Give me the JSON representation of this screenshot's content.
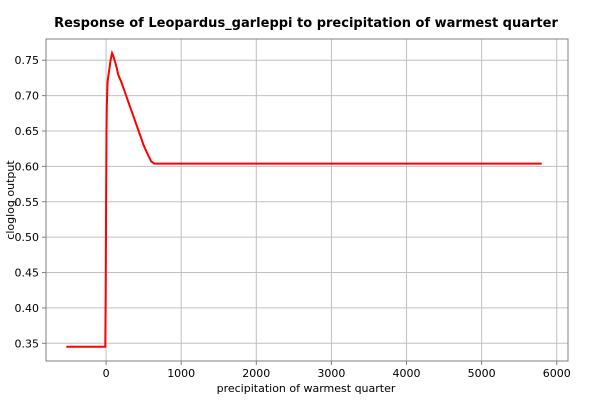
{
  "chart_data": {
    "type": "line",
    "title": "Response of Leopardus_garleppi to precipitation of warmest quarter",
    "xlabel": "precipitation of warmest quarter",
    "ylabel": "cloglog output",
    "xlim": [
      -800,
      6150
    ],
    "ylim": [
      0.325,
      0.78
    ],
    "xticks": [
      0,
      1000,
      2000,
      3000,
      4000,
      5000,
      6000
    ],
    "yticks": [
      0.35,
      0.4,
      0.45,
      0.5,
      0.55,
      0.6,
      0.65,
      0.7,
      0.75
    ],
    "xtick_labels": [
      "0",
      "1000",
      "2000",
      "3000",
      "4000",
      "5000",
      "6000"
    ],
    "ytick_labels": [
      "0.35",
      "0.40",
      "0.45",
      "0.50",
      "0.55",
      "0.60",
      "0.65",
      "0.70",
      "0.75"
    ],
    "grid": true,
    "line_color": "#ff0000",
    "series": [
      {
        "x": [
          -530,
          -10,
          -5,
          0,
          5,
          10,
          20,
          40,
          60,
          80,
          100,
          140,
          160,
          200,
          250,
          300,
          350,
          400,
          450,
          500,
          550,
          600,
          640,
          5800
        ],
        "y": [
          0.345,
          0.345,
          0.42,
          0.55,
          0.65,
          0.685,
          0.72,
          0.735,
          0.75,
          0.76,
          0.755,
          0.74,
          0.73,
          0.72,
          0.705,
          0.69,
          0.675,
          0.66,
          0.645,
          0.63,
          0.618,
          0.607,
          0.604,
          0.604
        ]
      }
    ]
  }
}
